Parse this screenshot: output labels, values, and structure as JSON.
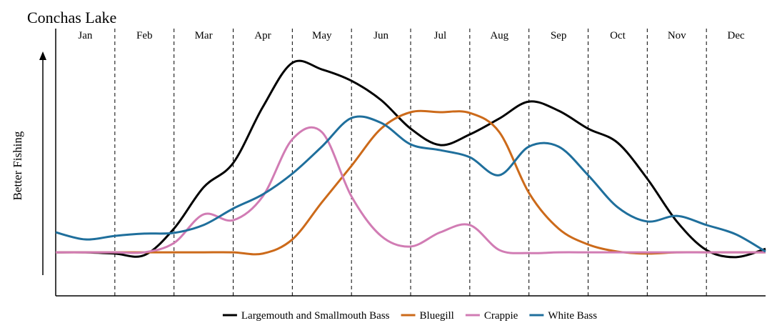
{
  "chart_data": {
    "type": "line",
    "title": "Conchas Lake",
    "y_label": "Better Fishing",
    "months": [
      "Jan",
      "Feb",
      "Mar",
      "Apr",
      "May",
      "Jun",
      "Jul",
      "Aug",
      "Sep",
      "Oct",
      "Nov",
      "Dec"
    ],
    "x": [
      0,
      0.5,
      1,
      1.5,
      2,
      2.5,
      3,
      3.5,
      4,
      4.5,
      5,
      5.5,
      6,
      6.5,
      7,
      7.5,
      8,
      8.5,
      9,
      9.5,
      10,
      10.5,
      11,
      11.5,
      12
    ],
    "xlim": [
      0,
      12
    ],
    "ylim": [
      0,
      100
    ],
    "legend": "bottom",
    "series": [
      {
        "name": "Largemouth and Smallmouth Bass",
        "color": "#000000",
        "values": [
          17.2,
          17.2,
          16.7,
          16.1,
          26.6,
          42.9,
          52.5,
          74.6,
          92.1,
          89.5,
          85.0,
          77.4,
          66.1,
          59.6,
          63.8,
          70.1,
          76.8,
          73.2,
          66.1,
          60.5,
          46.3,
          29.4,
          18.1,
          15.3,
          18.6
        ]
      },
      {
        "name": "Bluegill",
        "color": "#cc6a1a",
        "values": [
          17.2,
          17.2,
          17.2,
          17.2,
          17.2,
          17.2,
          17.2,
          16.7,
          22.3,
          37.0,
          51.4,
          66.1,
          72.6,
          72.6,
          72.3,
          64.7,
          40.7,
          26.6,
          20.3,
          17.5,
          16.7,
          17.2,
          17.2,
          17.2,
          17.2
        ]
      },
      {
        "name": "Crappie",
        "color": "#d17cb4",
        "values": [
          17.2,
          17.2,
          17.2,
          17.2,
          20.9,
          32.2,
          29.9,
          39.3,
          61.9,
          64.7,
          39.3,
          23.7,
          19.5,
          25.1,
          28.0,
          18.1,
          16.9,
          17.2,
          17.2,
          17.2,
          17.2,
          17.2,
          17.2,
          17.2,
          17.2
        ]
      },
      {
        "name": "White Bass",
        "color": "#1f6f9c",
        "values": [
          25.1,
          22.3,
          23.7,
          24.6,
          24.9,
          28.0,
          34.5,
          40.1,
          48.3,
          59.0,
          70.3,
          68.4,
          59.9,
          57.6,
          54.8,
          47.7,
          59.0,
          59.0,
          47.7,
          35.0,
          29.4,
          31.6,
          28.0,
          24.3,
          17.5
        ]
      }
    ]
  }
}
